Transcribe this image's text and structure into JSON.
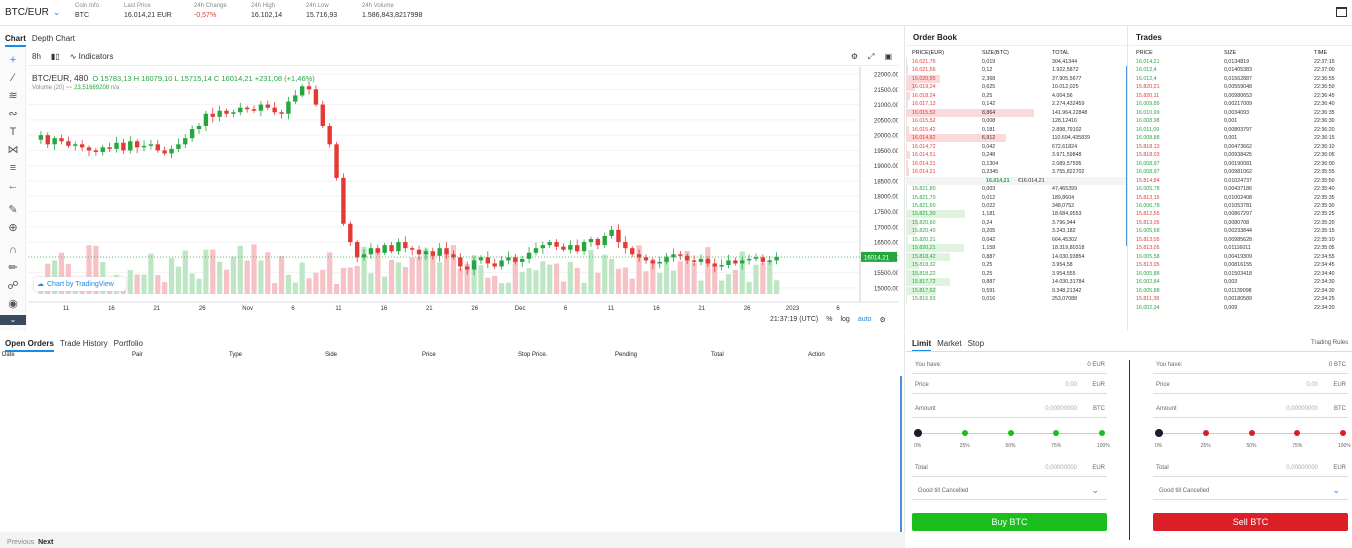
{
  "top": {
    "pair": "BTC/EUR",
    "stats": [
      {
        "label": "Coin Info",
        "value": "BTC"
      },
      {
        "label": "Last Price",
        "value": "16.014,21 EUR"
      },
      {
        "label": "24h Change",
        "value": "-0,57%",
        "neg": true
      },
      {
        "label": "24h High",
        "value": "16.102,14"
      },
      {
        "label": "24h Low",
        "value": "15.716,93"
      },
      {
        "label": "24h Volume",
        "value": "1.586,843,8217998"
      }
    ]
  },
  "chart": {
    "tabs": [
      "Chart",
      "Depth Chart"
    ],
    "interval": "8h",
    "indicators": "Indicators",
    "symbol": "BTC/EUR, 480",
    "ohlc": "O 15783,13  H 16079,10  L 15715,14  C 16014,21  +231,08 (+1,46%)",
    "volume_label": "Volume (20)",
    "volume_value": "23,51689208",
    "volume_na": "n/a",
    "tv_badge": "Chart by TradingView",
    "time": "21:37:19 (UTC)",
    "pct": "%",
    "log": "log",
    "auto": "auto",
    "last_price_tag": "16014,21",
    "price_ticks": [
      "22000.00",
      "21500.00",
      "21000.00",
      "20500.00",
      "20000.00",
      "19500.00",
      "19000.00",
      "18500.00",
      "18000.00",
      "17500.00",
      "17000.00",
      "16500.00",
      "16000.00",
      "15500.00",
      "15000.00"
    ],
    "date_ticks": [
      "11",
      "16",
      "21",
      "26",
      "Nov",
      "6",
      "11",
      "16",
      "21",
      "26",
      "Dec",
      "6",
      "11",
      "16",
      "21",
      "26",
      "2023",
      "6"
    ]
  },
  "chart_data": {
    "type": "candlestick",
    "ylim": [
      14800,
      22100
    ],
    "last": 16014.21,
    "ohlc_close_trend": [
      19850,
      20000,
      19700,
      19900,
      19800,
      19650,
      19700,
      19600,
      19500,
      19450,
      19600,
      19550,
      19750,
      19500,
      19800,
      19600,
      19650,
      19700,
      19500,
      19400,
      19550,
      19700,
      19900,
      20200,
      20300,
      20700,
      20600,
      20800,
      20700,
      20750,
      20900,
      20850,
      20800,
      21000,
      20900,
      20750,
      20700,
      21100,
      21300,
      21600,
      21500,
      21000,
      20300,
      19700,
      18600,
      17100,
      16500,
      16000,
      16100,
      16300,
      16150,
      16400,
      16200,
      16500,
      16300,
      16250,
      16100,
      16200,
      16050,
      16300,
      16100,
      16000,
      15700,
      15600,
      15900,
      16000,
      15800,
      15700,
      15900,
      16000,
      15850,
      15950,
      16150,
      16300,
      16400,
      16500,
      16350,
      16250,
      16400,
      16200,
      16500,
      16600,
      16400,
      16700,
      16900,
      16500,
      16300,
      16100,
      16000,
      15900,
      15800,
      15850,
      16000,
      16100,
      16050,
      15900,
      15850,
      15950,
      15800,
      15700,
      15750,
      15900,
      15800,
      15900,
      15950,
      16000,
      15850,
      15900,
      16014
    ]
  },
  "orderbook": {
    "title": "Order Book",
    "cols": [
      "PRICE(EUR)",
      "SIZE(BTC)",
      "TOTAL"
    ],
    "asks": [
      [
        "16.021,76",
        "0,019",
        "304,41344"
      ],
      [
        "16.021,56",
        "0,12",
        "1.922,5872"
      ],
      [
        "16.020,95",
        "2,368",
        "37.905,5677"
      ],
      [
        "16.019,24",
        "0,625",
        "10.012,025"
      ],
      [
        "16.018,24",
        "0,25",
        "4.004,56"
      ],
      [
        "16.017,13",
        "0,142",
        "2.274,432459"
      ],
      [
        "16.015,52",
        "8,864",
        "141.964,22848"
      ],
      [
        "16.015,52",
        "0,008",
        "128,12416"
      ],
      [
        "16.015,42",
        "0,181",
        "2.898,79102"
      ],
      [
        "16.014,82",
        "6,912",
        "110.694,435839"
      ],
      [
        "16.014,72",
        "0,042",
        "672,61824"
      ],
      [
        "16.014,51",
        "0,248",
        "3.971,59848"
      ],
      [
        "16.014,31",
        "0,1304",
        "2.089,57595"
      ],
      [
        "16.014,21",
        "0,2345",
        "3.755,822702"
      ]
    ],
    "mid_price": "16.014,21",
    "mid_eur": "€16.014,21",
    "bids": [
      [
        "15.821,80",
        "0,003",
        "47,465399"
      ],
      [
        "15.821,70",
        "0,012",
        "189,8604"
      ],
      [
        "15.821,60",
        "0,022",
        "348,0752"
      ],
      [
        "15.821,30",
        "1,181",
        "18.684,9553"
      ],
      [
        "15.820,60",
        "0,24",
        "3.796,944"
      ],
      [
        "15.820,40",
        "0,205",
        "3.243,182"
      ],
      [
        "15.820,31",
        "0,042",
        "664,45302"
      ],
      [
        "15.820,21",
        "1,158",
        "18.319,80318"
      ],
      [
        "15.818,42",
        "0,887",
        "14.030,93854"
      ],
      [
        "15.818,32",
        "0,25",
        "3.954,58"
      ],
      [
        "15.818,22",
        "0,25",
        "3.954,555"
      ],
      [
        "15.817,72",
        "0,887",
        "14.030,31784"
      ],
      [
        "15.817,62",
        "0,591",
        "9.348,21342"
      ],
      [
        "15.816,93",
        "0,016",
        "253,07088"
      ]
    ]
  },
  "trades": {
    "title": "Trades",
    "cols": [
      "PRICE",
      "SIZE",
      "TIME"
    ],
    "rows": [
      [
        "16.014,21",
        "0,0134819",
        "22:37:15",
        "g"
      ],
      [
        "16.012,4",
        "0,01405383",
        "22:37:00",
        "g"
      ],
      [
        "16.012,4",
        "0,01562887",
        "22:36:55",
        "g"
      ],
      [
        "15.820,21",
        "0,00559048",
        "22:36:50",
        "r"
      ],
      [
        "15.820,11",
        "0,00980653",
        "22:36:45",
        "r"
      ],
      [
        "16.009,89",
        "0,00217009",
        "22:36:40",
        "g"
      ],
      [
        "16.010,99",
        "0,0034093",
        "22:36:35",
        "g"
      ],
      [
        "16.008,98",
        "0,001",
        "22:36:30",
        "g"
      ],
      [
        "16.011,09",
        "0,00803797",
        "22:36:20",
        "g"
      ],
      [
        "16.008,88",
        "0,001",
        "22:36:15",
        "g"
      ],
      [
        "15.818,13",
        "0,00473662",
        "22:36:10",
        "r"
      ],
      [
        "15.818,03",
        "0,00938425",
        "22:36:05",
        "r"
      ],
      [
        "16.008,97",
        "0,00190081",
        "22:36:00",
        "g"
      ],
      [
        "16.008,97",
        "0,00981062",
        "22:35:55",
        "g"
      ],
      [
        "15.814,84",
        "0,01024737",
        "22:35:50",
        "r"
      ],
      [
        "16.005,78",
        "0,00437186",
        "22:35:40",
        "g"
      ],
      [
        "15.813,15",
        "0,01002408",
        "22:35:35",
        "r"
      ],
      [
        "16.006,78",
        "0,01053781",
        "22:35:30",
        "g"
      ],
      [
        "15.812,55",
        "0,00867297",
        "22:35:25",
        "r"
      ],
      [
        "15.813,05",
        "0,0080708",
        "22:35:20",
        "r"
      ],
      [
        "16.005,68",
        "0,00233844",
        "22:35:15",
        "g"
      ],
      [
        "15.813,05",
        "0,00985628",
        "22:35:10",
        "r"
      ],
      [
        "15.813,05",
        "0,01116011",
        "22:35:05",
        "r"
      ],
      [
        "16.005,58",
        "0,00419309",
        "22:34:55",
        "g"
      ],
      [
        "15.813,05",
        "0,00816155",
        "22:34:45",
        "r"
      ],
      [
        "16.005,88",
        "0,01503418",
        "22:34:40",
        "g"
      ],
      [
        "16.002,84",
        "0,003",
        "22:34:30",
        "g"
      ],
      [
        "16.005,88",
        "0,01139098",
        "22:34:30",
        "g"
      ],
      [
        "15.811,38",
        "0,00180589",
        "22:34:25",
        "r"
      ],
      [
        "16.002,34",
        "0,009",
        "22:34:20",
        "g"
      ]
    ]
  },
  "orders": {
    "tabs": [
      "Open Orders",
      "Trade History",
      "Portfolio"
    ],
    "cols": [
      "Date",
      "Pair",
      "Type",
      "Side",
      "Price",
      "Stop Price.",
      "Pending",
      "Total",
      "Action"
    ],
    "prev": "Previous",
    "next": "Next"
  },
  "trade": {
    "tabs": [
      "Limit",
      "Market",
      "Stop"
    ],
    "rules": "Trading Rules",
    "you_have": "You have:",
    "buy": {
      "have": "0 EUR",
      "price_label": "Price",
      "price": "0,00",
      "price_unit": "EUR",
      "amount_label": "Amount",
      "amount": "0,00000000",
      "amount_unit": "BTC",
      "total_label": "Total",
      "total": "0,00000000",
      "total_unit": "EUR",
      "tif": "Good till Cancelled",
      "button": "Buy BTC"
    },
    "sell": {
      "have": "0 BTC",
      "price_label": "Price",
      "price": "0,00",
      "price_unit": "EUR",
      "amount_label": "Amount",
      "amount": "0,00000000",
      "amount_unit": "BTC",
      "total_label": "Total",
      "total": "0,00000000",
      "total_unit": "EUR",
      "tif": "Good till Cancelled",
      "button": "Sell BTC"
    },
    "pcts": [
      "0%",
      "25%",
      "50%",
      "75%",
      "100%"
    ],
    "colors": {
      "buy": "#1bbf1b",
      "sell": "#dc1f26"
    }
  }
}
